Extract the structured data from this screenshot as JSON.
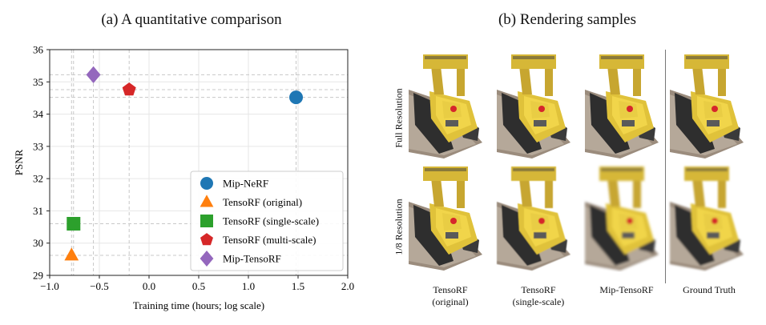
{
  "panel_a": {
    "title": "(a) A quantitative comparison"
  },
  "panel_b": {
    "title": "(b) Rendering samples",
    "row_labels": [
      "Full Resolution",
      "1/8 Resolution"
    ],
    "column_labels": [
      {
        "line1": "TensoRF",
        "line2": "(original)"
      },
      {
        "line1": "TensoRF",
        "line2": "(single-scale)"
      },
      {
        "line1": "Mip-TensoRF",
        "line2": ""
      },
      {
        "line1": "Ground Truth",
        "line2": ""
      }
    ]
  },
  "chart_data": {
    "type": "scatter",
    "title": "(a) A quantitative comparison",
    "xlabel": "Training time (hours; log scale)",
    "ylabel": "PSNR",
    "xlim": [
      -1.0,
      2.0
    ],
    "ylim": [
      29,
      36
    ],
    "xticks": [
      "−1.0",
      "−0.5",
      "0.0",
      "0.5",
      "1.0",
      "1.5",
      "2.0"
    ],
    "xtick_values": [
      -1.0,
      -0.5,
      0.0,
      0.5,
      1.0,
      1.5,
      2.0
    ],
    "yticks": [
      "29",
      "30",
      "31",
      "32",
      "33",
      "34",
      "35",
      "36"
    ],
    "ytick_values": [
      29,
      30,
      31,
      32,
      33,
      34,
      35,
      36
    ],
    "grid": true,
    "legend_position": "lower-right",
    "series": [
      {
        "name": "Mip-NeRF",
        "x": 1.48,
        "y": 34.52,
        "marker": "circle",
        "color": "#1f77b4"
      },
      {
        "name": "TensoRF (original)",
        "x": -0.78,
        "y": 29.62,
        "marker": "triangle",
        "color": "#ff7f0e"
      },
      {
        "name": "TensoRF (single-scale)",
        "x": -0.76,
        "y": 30.6,
        "marker": "square",
        "color": "#2ca02c"
      },
      {
        "name": "TensoRF (multi-scale)",
        "x": -0.2,
        "y": 34.76,
        "marker": "pentagon",
        "color": "#d62728"
      },
      {
        "name": "Mip-TensoRF",
        "x": -0.56,
        "y": 35.22,
        "marker": "diamond",
        "color": "#9467bd"
      }
    ]
  }
}
